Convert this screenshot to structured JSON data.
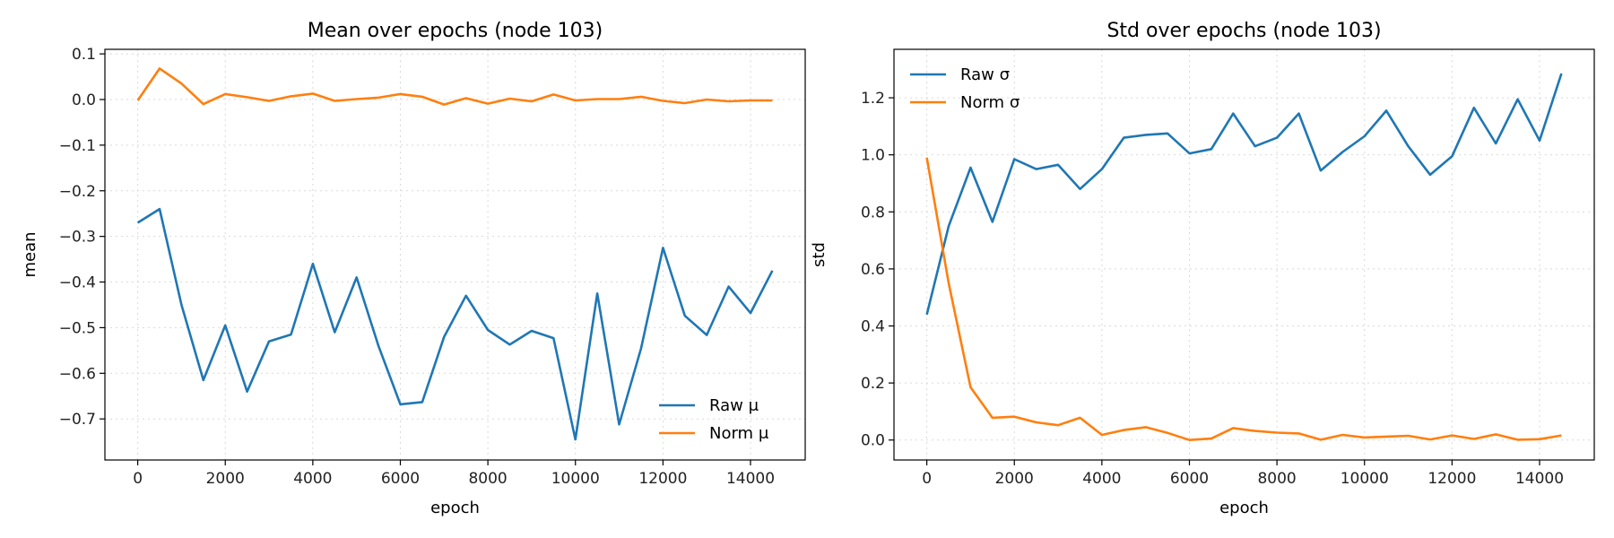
{
  "chart_data": [
    {
      "type": "line",
      "title": "Mean over epochs (node 103)",
      "xlabel": "epoch",
      "ylabel": "mean",
      "xlim": [
        -750,
        15250
      ],
      "ylim": [
        -0.79,
        0.11
      ],
      "xticks": [
        0,
        2000,
        4000,
        6000,
        8000,
        10000,
        12000,
        14000
      ],
      "yticks": [
        0.1,
        0.0,
        -0.1,
        -0.2,
        -0.3,
        -0.4,
        -0.5,
        -0.6,
        -0.7
      ],
      "ytick_labels": [
        "0.1",
        "0.0",
        "−0.1",
        "−0.2",
        "−0.3",
        "−0.4",
        "−0.5",
        "−0.6",
        "−0.7"
      ],
      "grid": true,
      "legend_position": "lower-right",
      "x": [
        0,
        500,
        1000,
        1500,
        2000,
        2500,
        3000,
        3500,
        4000,
        4500,
        5000,
        5500,
        6000,
        6500,
        7000,
        7500,
        8000,
        8500,
        9000,
        9500,
        10000,
        10500,
        11000,
        11500,
        12000,
        12500,
        13000,
        13500,
        14000,
        14500
      ],
      "series": [
        {
          "name": "Raw μ",
          "color": "#1f77b4",
          "values": [
            -0.27,
            -0.24,
            -0.45,
            -0.615,
            -0.495,
            -0.64,
            -0.53,
            -0.515,
            -0.36,
            -0.51,
            -0.39,
            -0.54,
            -0.668,
            -0.663,
            -0.52,
            -0.43,
            -0.505,
            -0.537,
            -0.507,
            -0.523,
            -0.745,
            -0.425,
            -0.712,
            -0.545,
            -0.325,
            -0.474,
            -0.516,
            -0.41,
            -0.468,
            -0.375
          ]
        },
        {
          "name": "Norm μ",
          "color": "#ff7f0e",
          "values": [
            -0.002,
            0.068,
            0.035,
            -0.01,
            0.012,
            0.005,
            -0.003,
            0.007,
            0.013,
            -0.003,
            0.001,
            0.004,
            0.012,
            0.006,
            -0.011,
            0.003,
            -0.009,
            0.002,
            -0.004,
            0.011,
            -0.002,
            0.001,
            0.001,
            0.006,
            -0.003,
            -0.008,
            0.0,
            -0.004,
            -0.002,
            -0.002
          ]
        }
      ]
    },
    {
      "type": "line",
      "title": "Std over epochs (node 103)",
      "xlabel": "epoch",
      "ylabel": "std",
      "xlim": [
        -750,
        15250
      ],
      "ylim": [
        -0.07,
        1.37
      ],
      "xticks": [
        0,
        2000,
        4000,
        6000,
        8000,
        10000,
        12000,
        14000
      ],
      "yticks": [
        0.0,
        0.2,
        0.4,
        0.6,
        0.8,
        1.0,
        1.2
      ],
      "ytick_labels": [
        "0.0",
        "0.2",
        "0.4",
        "0.6",
        "0.8",
        "1.0",
        "1.2"
      ],
      "grid": true,
      "legend_position": "upper-left",
      "x": [
        0,
        500,
        1000,
        1500,
        2000,
        2500,
        3000,
        3500,
        4000,
        4500,
        5000,
        5500,
        6000,
        6500,
        7000,
        7500,
        8000,
        8500,
        9000,
        9500,
        10000,
        10500,
        11000,
        11500,
        12000,
        12500,
        13000,
        13500,
        14000,
        14500
      ],
      "series": [
        {
          "name": "Raw σ",
          "color": "#1f77b4",
          "values": [
            0.44,
            0.75,
            0.955,
            0.765,
            0.985,
            0.95,
            0.965,
            0.88,
            0.95,
            1.06,
            1.07,
            1.075,
            1.005,
            1.02,
            1.145,
            1.03,
            1.06,
            1.145,
            0.945,
            1.01,
            1.065,
            1.155,
            1.03,
            0.93,
            0.995,
            1.165,
            1.04,
            1.195,
            1.05,
            1.285
          ]
        },
        {
          "name": "Norm σ",
          "color": "#ff7f0e",
          "values": [
            0.99,
            0.55,
            0.185,
            0.078,
            0.082,
            0.062,
            0.052,
            0.078,
            0.018,
            0.035,
            0.045,
            0.025,
            0.0,
            0.005,
            0.042,
            0.032,
            0.026,
            0.023,
            0.001,
            0.018,
            0.009,
            0.012,
            0.015,
            0.002,
            0.016,
            0.004,
            0.02,
            0.001,
            0.003,
            0.016
          ]
        }
      ]
    }
  ]
}
